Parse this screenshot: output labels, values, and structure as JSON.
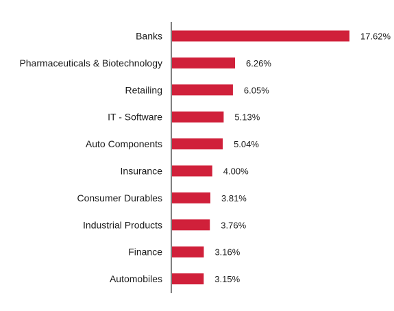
{
  "chart_data": {
    "type": "bar",
    "orientation": "horizontal",
    "categories": [
      "Banks",
      "Pharmaceuticals & Biotechnology",
      "Retailing",
      "IT - Software",
      "Auto Components",
      "Insurance",
      "Consumer Durables",
      "Industrial Products",
      "Finance",
      "Automobiles"
    ],
    "values": [
      17.62,
      6.26,
      6.05,
      5.13,
      5.04,
      4.0,
      3.81,
      3.76,
      3.16,
      3.15
    ],
    "value_labels": [
      "17.62%",
      "6.26%",
      "6.05%",
      "5.13%",
      "5.04%",
      "4.00%",
      "3.81%",
      "3.76%",
      "3.16%",
      "3.15%"
    ],
    "title": "",
    "xlabel": "",
    "ylabel": "",
    "xlim": [
      0,
      17.62
    ],
    "grid": false,
    "bar_color": "#d0203a",
    "axis_color": "#808080"
  }
}
